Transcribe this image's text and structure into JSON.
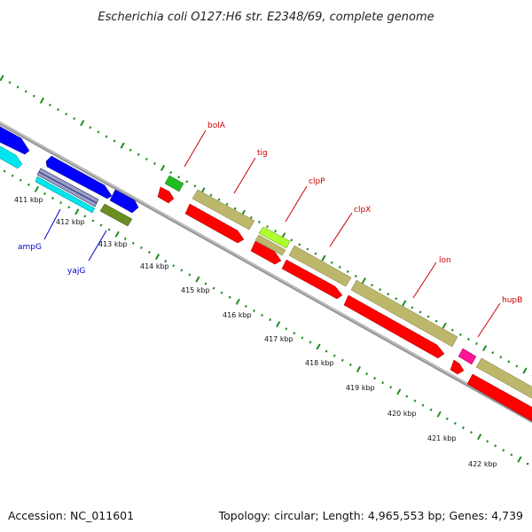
{
  "title": "Escherichia coli O127:H6 str. E2348/69, complete genome",
  "footer": {
    "accession": "Accession: NC_011601",
    "summary": "Topology: circular; Length: 4,965,553 bp; Genes: 4,739"
  },
  "colors": {
    "backbone": "#8c8c8c",
    "tick": "#228b22",
    "forward_label": "#cc0000",
    "reverse_label": "#0000cc",
    "cds_red": "#ff0000",
    "cds_blue": "#0000ff",
    "cds_cyan": "#00e5ee",
    "cds_khaki": "#bdb76b",
    "cds_green": "#22bb22",
    "cds_olive": "#6b8e23",
    "cds_lime": "#adff2f",
    "cds_magenta": "#ff1493"
  },
  "ruler": {
    "labels": [
      "411 kbp",
      "412 kbp",
      "413 kbp",
      "414 kbp",
      "415 kbp",
      "416 kbp",
      "417 kbp",
      "418 kbp",
      "419 kbp",
      "420 kbp",
      "421 kbp",
      "422 kbp"
    ]
  },
  "genes": [
    {
      "name": "ampG",
      "strand": "reverse"
    },
    {
      "name": "yajG",
      "strand": "reverse"
    },
    {
      "name": "bolA",
      "strand": "forward"
    },
    {
      "name": "tig",
      "strand": "forward"
    },
    {
      "name": "clpP",
      "strand": "forward"
    },
    {
      "name": "clpX",
      "strand": "forward"
    },
    {
      "name": "lon",
      "strand": "forward"
    },
    {
      "name": "hupB",
      "strand": "forward"
    }
  ]
}
